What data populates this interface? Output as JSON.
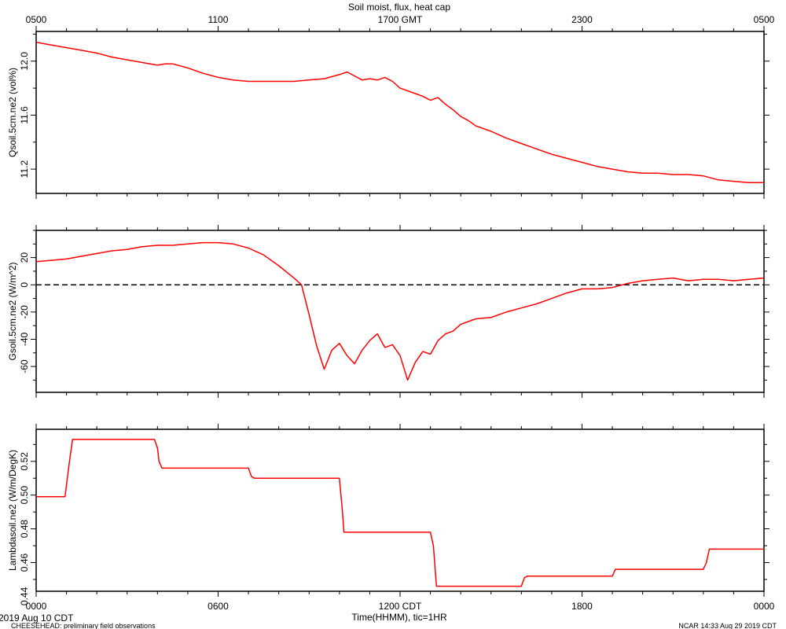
{
  "top_axis": {
    "title": "Soil moist, flux, heat cap",
    "tick_labels": [
      "0500",
      "1100",
      "1700 GMT",
      "2300",
      "0500"
    ]
  },
  "bottom_axis": {
    "tick_labels": [
      "0000",
      "0600",
      "1200 CDT",
      "1800",
      "0000"
    ],
    "xlabel": "Time(HHMM), tic=1HR",
    "date_label": "2019 Aug 10 CDT"
  },
  "footer": {
    "left": "CHEESEHEAD: preliminary field observations",
    "right": "NCAR 14:33 Aug 29 2019 CDT"
  },
  "colors": {
    "series": "#ff0000",
    "axes": "#000000",
    "zero_line": "#000000"
  },
  "chart_data": [
    {
      "type": "line",
      "ylabel": "Qsoil.5cm.ne2 (vol%)",
      "xlim": [
        0,
        24
      ],
      "ylim": [
        11.02,
        12.22
      ],
      "yticks": [
        11.2,
        11.6,
        12.0
      ],
      "ytick_labels": [
        "11.2",
        "11.6",
        "12.0"
      ],
      "series": [
        {
          "x": [
            0,
            0.5,
            1,
            1.5,
            2,
            2.5,
            3,
            3.5,
            4,
            4.25,
            4.5,
            5,
            5.5,
            6,
            6.5,
            7,
            7.5,
            8,
            8.5,
            9,
            9.5,
            10,
            10.25,
            10.5,
            10.75,
            11,
            11.25,
            11.5,
            11.75,
            12,
            12.25,
            12.5,
            12.75,
            13,
            13.25,
            13.5,
            13.75,
            14,
            14.25,
            14.5,
            15,
            15.5,
            16,
            16.5,
            17,
            17.5,
            18,
            18.5,
            19,
            19.5,
            20,
            20.5,
            21,
            21.5,
            22,
            22.5,
            23,
            23.5,
            24
          ],
          "values": [
            12.14,
            12.12,
            12.1,
            12.08,
            12.06,
            12.03,
            12.01,
            11.99,
            11.97,
            11.98,
            11.98,
            11.95,
            11.91,
            11.88,
            11.86,
            11.85,
            11.85,
            11.85,
            11.85,
            11.86,
            11.87,
            11.9,
            11.92,
            11.89,
            11.86,
            11.87,
            11.86,
            11.88,
            11.85,
            11.8,
            11.78,
            11.76,
            11.74,
            11.71,
            11.73,
            11.68,
            11.64,
            11.59,
            11.56,
            11.52,
            11.48,
            11.43,
            11.39,
            11.35,
            11.31,
            11.28,
            11.25,
            11.22,
            11.2,
            11.18,
            11.17,
            11.17,
            11.16,
            11.16,
            11.15,
            11.12,
            11.11,
            11.1,
            11.1
          ]
        }
      ]
    },
    {
      "type": "line",
      "ylabel": "Gsoil.5cm.ne2 (W/m^2)",
      "xlim": [
        0,
        24
      ],
      "ylim": [
        -79,
        40
      ],
      "yticks": [
        -60,
        -40,
        -20,
        0,
        20
      ],
      "ytick_labels": [
        "-60",
        "-40",
        "-20",
        "0",
        "20"
      ],
      "reference_line": {
        "y": 0,
        "style": "dashed"
      },
      "series": [
        {
          "x": [
            0,
            0.5,
            1,
            1.5,
            2,
            2.5,
            3,
            3.5,
            4,
            4.5,
            5,
            5.5,
            6,
            6.5,
            7,
            7.5,
            8,
            8.5,
            8.75,
            9,
            9.25,
            9.5,
            9.75,
            10,
            10.25,
            10.5,
            10.75,
            11,
            11.25,
            11.5,
            11.75,
            12,
            12.25,
            12.5,
            12.75,
            13,
            13.25,
            13.5,
            13.75,
            14,
            14.25,
            14.5,
            15,
            15.5,
            16,
            16.5,
            17,
            17.5,
            18,
            18.5,
            19,
            19.5,
            20,
            20.5,
            21,
            21.5,
            22,
            22.5,
            23,
            23.5,
            24
          ],
          "values": [
            17,
            18,
            19,
            21,
            23,
            25,
            26,
            28,
            29,
            29,
            30,
            31,
            31,
            30,
            27,
            22,
            14,
            5,
            0,
            -22,
            -45,
            -62,
            -48,
            -43,
            -52,
            -58,
            -48,
            -41,
            -36,
            -46,
            -44,
            -52,
            -70,
            -57,
            -49,
            -51,
            -41,
            -36,
            -34,
            -29,
            -27,
            -25,
            -24,
            -20,
            -17,
            -14,
            -10,
            -6,
            -3,
            -3,
            -2,
            1,
            3,
            4,
            5,
            3,
            4,
            4,
            3,
            4,
            5
          ]
        }
      ]
    },
    {
      "type": "line",
      "ylabel": "Lambdasoil.ne2 (W/m/DegK)",
      "xlim": [
        0,
        24
      ],
      "ylim": [
        0.443,
        0.539
      ],
      "yticks": [
        0.44,
        0.46,
        0.48,
        0.5,
        0.52
      ],
      "ytick_labels": [
        "0.44",
        "0.46",
        "0.48",
        "0.50",
        "0.52"
      ],
      "series": [
        {
          "x": [
            0,
            0.95,
            1.1,
            1.2,
            3.9,
            4.0,
            4.05,
            4.15,
            7.0,
            7.1,
            7.2,
            10.0,
            10.1,
            10.15,
            10.2,
            13.0,
            13.1,
            13.2,
            16.0,
            16.1,
            16.2,
            19.0,
            19.1,
            19.2,
            22.0,
            22.1,
            22.2,
            24
          ],
          "values": [
            0.499,
            0.499,
            0.52,
            0.533,
            0.533,
            0.528,
            0.52,
            0.516,
            0.516,
            0.511,
            0.51,
            0.51,
            0.49,
            0.478,
            0.478,
            0.478,
            0.47,
            0.446,
            0.446,
            0.451,
            0.452,
            0.452,
            0.456,
            0.456,
            0.456,
            0.46,
            0.468,
            0.468
          ]
        }
      ]
    }
  ]
}
